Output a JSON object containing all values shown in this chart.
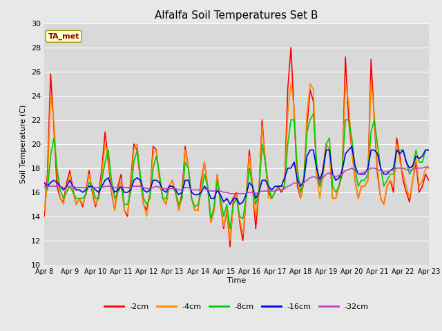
{
  "title": "Alfalfa Soil Temperatures Set B",
  "xlabel": "Time",
  "ylabel": "Soil Temperature (C)",
  "ylim": [
    10,
    30
  ],
  "xlim": [
    0,
    15
  ],
  "xtick_labels": [
    "Apr 8",
    "Apr 9",
    "Apr 10",
    "Apr 11",
    "Apr 12",
    "Apr 13",
    "Apr 14",
    "Apr 15",
    "Apr 16",
    "Apr 17",
    "Apr 18",
    "Apr 19",
    "Apr 20",
    "Apr 21",
    "Apr 22",
    "Apr 23"
  ],
  "ytick_values": [
    10,
    12,
    14,
    16,
    18,
    20,
    22,
    24,
    26,
    28,
    30
  ],
  "fig_facecolor": "#e8e8e8",
  "plot_facecolor": "#d9d9d9",
  "grid_color": "#ffffff",
  "ta_met_label": "TA_met",
  "ta_met_color": "#8b0000",
  "ta_met_box_facecolor": "#ffffcc",
  "ta_met_box_edgecolor": "#999900",
  "series": {
    "neg2cm": {
      "label": "-2cm",
      "color": "#ff0000",
      "linewidth": 1.2
    },
    "neg4cm": {
      "label": "-4cm",
      "color": "#ff8c00",
      "linewidth": 1.2
    },
    "neg8cm": {
      "label": "-8cm",
      "color": "#00cc00",
      "linewidth": 1.2
    },
    "neg16cm": {
      "label": "-16cm",
      "color": "#0000dd",
      "linewidth": 1.2
    },
    "neg32cm": {
      "label": "-32cm",
      "color": "#bb44bb",
      "linewidth": 1.2
    }
  },
  "x": [
    0.0,
    0.125,
    0.25,
    0.375,
    0.5,
    0.625,
    0.75,
    0.875,
    1.0,
    1.125,
    1.25,
    1.375,
    1.5,
    1.625,
    1.75,
    1.875,
    2.0,
    2.125,
    2.25,
    2.375,
    2.5,
    2.625,
    2.75,
    2.875,
    3.0,
    3.125,
    3.25,
    3.375,
    3.5,
    3.625,
    3.75,
    3.875,
    4.0,
    4.125,
    4.25,
    4.375,
    4.5,
    4.625,
    4.75,
    4.875,
    5.0,
    5.125,
    5.25,
    5.375,
    5.5,
    5.625,
    5.75,
    5.875,
    6.0,
    6.125,
    6.25,
    6.375,
    6.5,
    6.625,
    6.75,
    6.875,
    7.0,
    7.125,
    7.25,
    7.375,
    7.5,
    7.625,
    7.75,
    7.875,
    8.0,
    8.125,
    8.25,
    8.375,
    8.5,
    8.625,
    8.75,
    8.875,
    9.0,
    9.125,
    9.25,
    9.375,
    9.5,
    9.625,
    9.75,
    9.875,
    10.0,
    10.125,
    10.25,
    10.375,
    10.5,
    10.625,
    10.75,
    10.875,
    11.0,
    11.125,
    11.25,
    11.375,
    11.5,
    11.625,
    11.75,
    11.875,
    12.0,
    12.125,
    12.25,
    12.375,
    12.5,
    12.625,
    12.75,
    12.875,
    13.0,
    13.125,
    13.25,
    13.375,
    13.5,
    13.625,
    13.75,
    13.875,
    14.0,
    14.125,
    14.25,
    14.375,
    14.5,
    14.625,
    14.75,
    14.875,
    15.0
  ],
  "neg2cm_y": [
    14.0,
    17.5,
    25.8,
    21.5,
    16.5,
    15.5,
    15.2,
    16.8,
    17.8,
    16.2,
    15.0,
    15.5,
    14.8,
    16.0,
    17.8,
    16.0,
    14.8,
    15.8,
    18.0,
    21.0,
    18.5,
    16.0,
    14.5,
    16.5,
    17.5,
    14.5,
    14.0,
    17.0,
    20.0,
    19.5,
    17.0,
    15.0,
    14.5,
    16.0,
    19.8,
    19.5,
    17.0,
    15.5,
    15.0,
    16.5,
    17.0,
    16.0,
    14.5,
    16.0,
    19.8,
    18.0,
    15.5,
    14.5,
    14.5,
    17.0,
    18.5,
    16.5,
    13.5,
    14.5,
    17.5,
    15.0,
    13.0,
    14.5,
    11.5,
    15.5,
    16.0,
    13.5,
    12.0,
    15.5,
    19.5,
    16.5,
    13.0,
    16.0,
    22.0,
    18.5,
    16.0,
    15.5,
    16.0,
    16.5,
    16.0,
    16.5,
    24.5,
    28.0,
    22.5,
    16.5,
    15.5,
    16.8,
    21.5,
    24.5,
    23.5,
    17.5,
    16.5,
    18.0,
    20.0,
    19.5,
    15.5,
    15.5,
    16.5,
    17.5,
    27.2,
    22.0,
    19.5,
    17.0,
    15.5,
    16.5,
    16.5,
    17.0,
    27.0,
    22.0,
    17.5,
    15.5,
    15.0,
    16.5,
    17.0,
    16.0,
    20.5,
    19.0,
    17.0,
    16.0,
    15.2,
    17.0,
    18.5,
    16.0,
    16.5,
    17.5,
    17.0
  ],
  "neg4cm_y": [
    14.5,
    16.5,
    24.0,
    22.0,
    17.5,
    15.5,
    15.0,
    16.5,
    17.5,
    16.0,
    15.0,
    15.5,
    15.0,
    15.8,
    17.5,
    16.2,
    15.0,
    15.5,
    17.5,
    20.0,
    19.0,
    16.2,
    14.5,
    16.0,
    17.0,
    14.5,
    14.2,
    16.5,
    19.5,
    20.0,
    17.0,
    15.0,
    14.0,
    16.0,
    19.2,
    19.5,
    16.8,
    15.5,
    15.0,
    16.5,
    17.0,
    16.0,
    14.5,
    15.5,
    19.5,
    18.0,
    15.5,
    14.5,
    14.5,
    16.5,
    18.5,
    16.5,
    13.5,
    14.5,
    17.5,
    15.0,
    13.2,
    14.5,
    12.0,
    15.0,
    15.8,
    13.8,
    12.5,
    15.5,
    19.0,
    16.5,
    14.0,
    16.0,
    21.5,
    18.5,
    15.5,
    15.5,
    16.0,
    16.5,
    16.5,
    16.5,
    22.5,
    25.0,
    23.0,
    17.0,
    15.5,
    17.0,
    22.5,
    25.0,
    24.5,
    17.5,
    15.5,
    17.5,
    20.0,
    19.5,
    15.5,
    15.5,
    16.5,
    18.0,
    25.0,
    23.5,
    19.5,
    17.0,
    15.5,
    16.5,
    16.5,
    17.0,
    25.2,
    22.5,
    18.0,
    15.5,
    15.0,
    16.5,
    17.0,
    16.5,
    20.0,
    18.5,
    17.5,
    16.5,
    15.5,
    17.0,
    19.0,
    16.5,
    17.0,
    18.0,
    18.0
  ],
  "neg8cm_y": [
    16.5,
    16.2,
    19.0,
    20.5,
    18.0,
    16.2,
    15.5,
    16.0,
    16.5,
    16.0,
    15.5,
    15.5,
    15.5,
    15.8,
    16.8,
    16.5,
    15.5,
    15.5,
    17.0,
    18.5,
    19.5,
    17.0,
    15.5,
    16.0,
    16.5,
    15.0,
    15.0,
    16.0,
    18.5,
    19.5,
    17.5,
    15.5,
    15.0,
    15.5,
    18.0,
    19.0,
    17.5,
    15.5,
    15.5,
    16.5,
    16.5,
    16.0,
    15.0,
    15.5,
    18.5,
    18.0,
    15.5,
    14.8,
    15.0,
    16.0,
    17.5,
    16.5,
    13.8,
    14.8,
    17.0,
    15.5,
    14.0,
    15.0,
    13.0,
    15.0,
    15.5,
    14.0,
    13.8,
    15.5,
    18.0,
    16.5,
    15.0,
    16.0,
    20.0,
    18.5,
    16.5,
    15.5,
    16.0,
    16.5,
    16.5,
    16.5,
    20.0,
    22.0,
    22.0,
    18.0,
    16.0,
    17.0,
    21.0,
    22.0,
    22.5,
    18.5,
    16.5,
    17.5,
    20.0,
    20.5,
    16.5,
    16.0,
    16.5,
    18.0,
    22.0,
    22.0,
    20.5,
    18.0,
    16.5,
    17.0,
    17.0,
    17.5,
    21.0,
    22.0,
    20.0,
    18.0,
    16.5,
    17.0,
    17.5,
    17.5,
    19.5,
    19.5,
    19.5,
    18.5,
    17.5,
    18.0,
    19.5,
    18.5,
    18.5,
    19.5,
    19.5
  ],
  "neg16cm_y": [
    16.8,
    16.5,
    16.8,
    17.0,
    16.8,
    16.5,
    16.2,
    16.5,
    17.0,
    16.5,
    16.2,
    16.2,
    16.0,
    16.2,
    16.5,
    16.5,
    16.2,
    16.0,
    16.5,
    17.0,
    17.2,
    16.5,
    16.0,
    16.2,
    16.5,
    16.0,
    16.0,
    16.2,
    17.0,
    17.2,
    17.0,
    16.2,
    16.0,
    16.2,
    17.0,
    17.0,
    16.8,
    16.2,
    16.0,
    16.5,
    16.5,
    16.2,
    15.8,
    16.0,
    17.0,
    17.0,
    16.0,
    15.8,
    15.8,
    16.0,
    16.5,
    16.2,
    15.5,
    15.5,
    16.2,
    15.8,
    15.2,
    15.5,
    15.0,
    15.5,
    15.5,
    15.0,
    15.2,
    15.8,
    16.8,
    16.5,
    15.5,
    16.0,
    17.0,
    17.0,
    16.5,
    16.2,
    16.5,
    16.5,
    16.5,
    17.2,
    18.0,
    18.0,
    18.5,
    17.0,
    16.5,
    17.0,
    19.0,
    19.5,
    19.5,
    18.0,
    17.0,
    17.8,
    19.5,
    19.5,
    17.5,
    17.0,
    17.2,
    17.8,
    19.2,
    19.5,
    19.8,
    18.2,
    17.5,
    17.5,
    17.5,
    18.0,
    19.5,
    19.5,
    19.2,
    18.0,
    17.5,
    17.5,
    17.8,
    18.0,
    19.5,
    19.2,
    19.5,
    18.5,
    18.0,
    18.2,
    19.0,
    18.8,
    19.0,
    19.5,
    19.5
  ],
  "neg32cm_y": [
    16.5,
    16.5,
    16.5,
    16.5,
    16.5,
    16.5,
    16.4,
    16.4,
    16.5,
    16.5,
    16.4,
    16.4,
    16.4,
    16.4,
    16.4,
    16.4,
    16.4,
    16.4,
    16.4,
    16.5,
    16.5,
    16.5,
    16.4,
    16.4,
    16.5,
    16.4,
    16.4,
    16.4,
    16.5,
    16.5,
    16.5,
    16.4,
    16.3,
    16.3,
    16.4,
    16.5,
    16.4,
    16.3,
    16.3,
    16.3,
    16.3,
    16.3,
    16.2,
    16.2,
    16.4,
    16.4,
    16.2,
    16.2,
    16.2,
    16.2,
    16.3,
    16.2,
    16.1,
    16.1,
    16.2,
    16.1,
    16.0,
    16.0,
    15.9,
    15.9,
    15.9,
    15.9,
    15.9,
    15.9,
    16.0,
    16.0,
    15.9,
    16.0,
    16.1,
    16.1,
    16.1,
    16.1,
    16.1,
    16.2,
    16.2,
    16.3,
    16.5,
    16.6,
    16.8,
    16.7,
    16.7,
    16.8,
    17.0,
    17.2,
    17.3,
    17.2,
    17.0,
    17.2,
    17.5,
    17.6,
    17.4,
    17.3,
    17.4,
    17.5,
    17.8,
    17.9,
    18.0,
    17.8,
    17.5,
    17.6,
    17.7,
    17.8,
    18.0,
    18.0,
    17.9,
    17.8,
    17.7,
    17.7,
    17.8,
    17.8,
    18.0,
    18.0,
    18.0,
    17.9,
    17.8,
    17.9,
    18.0,
    18.0,
    18.0,
    18.1,
    18.1
  ]
}
